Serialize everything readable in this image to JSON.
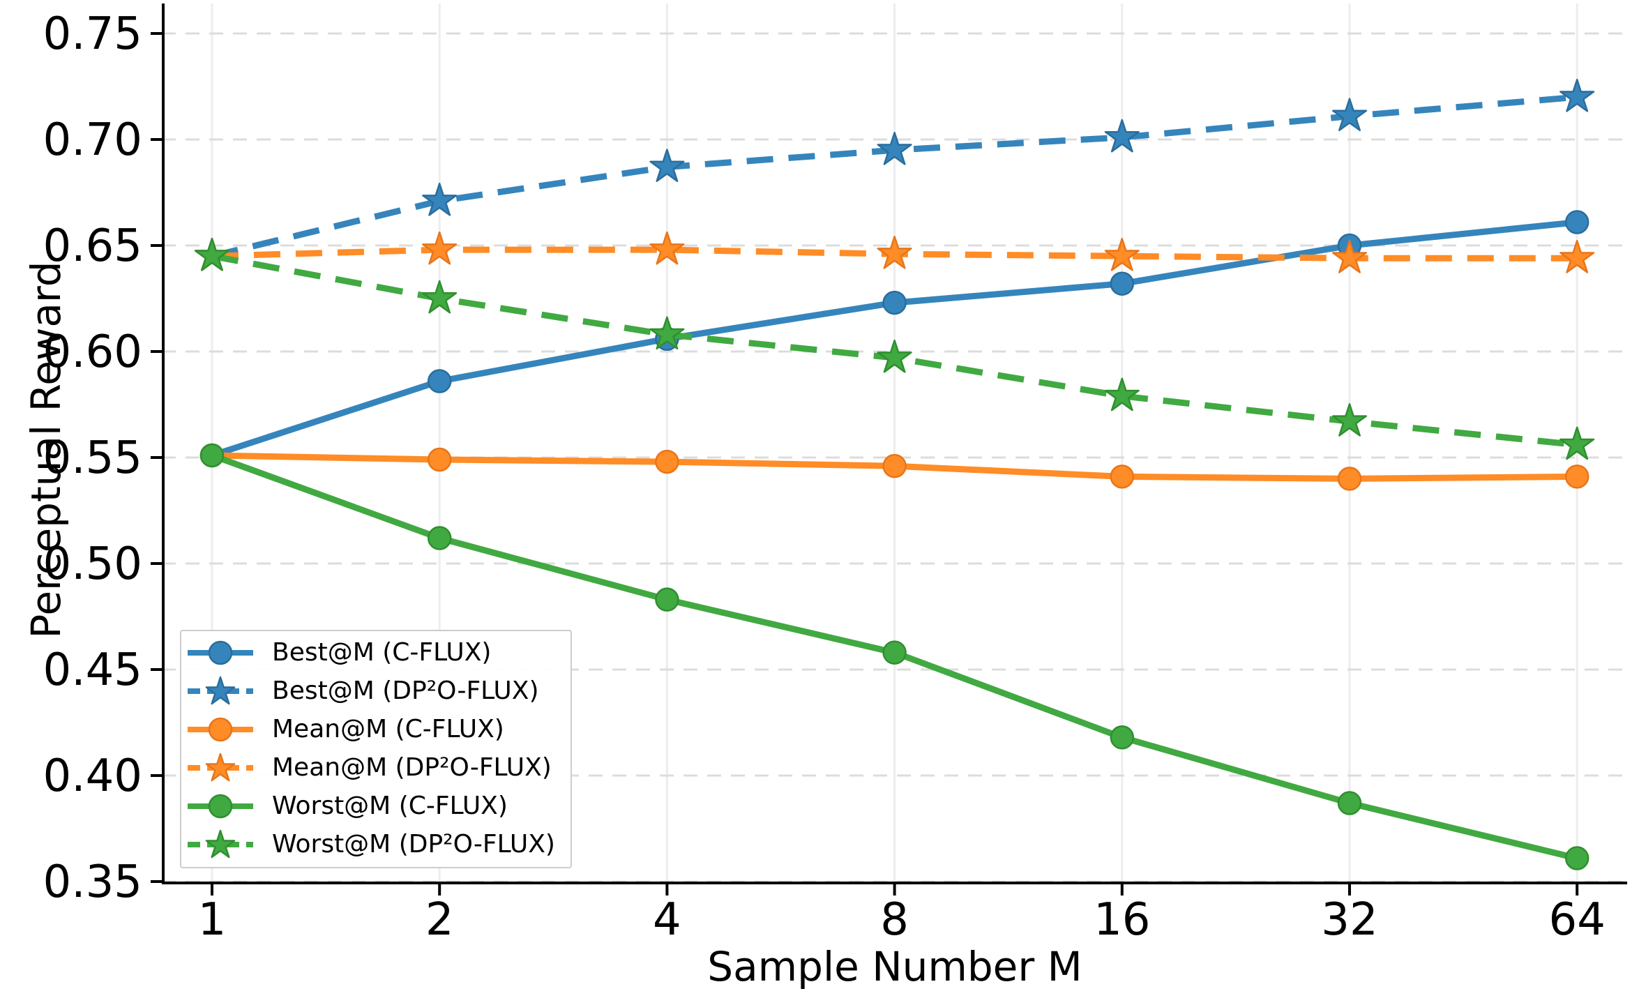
{
  "chart_data": {
    "type": "line",
    "title": "",
    "xlabel": "Sample Number M",
    "ylabel": "Perceptual Reward",
    "x_scale": "log2",
    "x": [
      1,
      2,
      4,
      8,
      16,
      32,
      64
    ],
    "x_tick_labels": [
      "1",
      "2",
      "4",
      "8",
      "16",
      "32",
      "64"
    ],
    "y_ticks": [
      0.35,
      0.4,
      0.45,
      0.5,
      0.55,
      0.6,
      0.65,
      0.7,
      0.75
    ],
    "y_tick_labels": [
      "0.35",
      "0.40",
      "0.45",
      "0.50",
      "0.55",
      "0.60",
      "0.65",
      "0.70",
      "0.75"
    ],
    "ylim": [
      0.349,
      0.764
    ],
    "grid": true,
    "legend_position": "lower left",
    "series": [
      {
        "name": "Best@M (C-FLUX)",
        "color": "#3585bc",
        "edge_color": "#2a6d9c",
        "style": "solid",
        "marker": "circle",
        "values": [
          0.551,
          0.586,
          0.606,
          0.623,
          0.632,
          0.65,
          0.661
        ]
      },
      {
        "name": "Best@M (DP²O-FLUX)",
        "color": "#3585bc",
        "edge_color": "#2a6d9c",
        "style": "dashed",
        "marker": "star",
        "values": [
          0.645,
          0.671,
          0.687,
          0.695,
          0.701,
          0.711,
          0.72
        ]
      },
      {
        "name": "Mean@M (C-FLUX)",
        "color": "#ff8c26",
        "edge_color": "#e8751a",
        "style": "solid",
        "marker": "circle",
        "values": [
          0.551,
          0.549,
          0.548,
          0.546,
          0.541,
          0.54,
          0.541
        ]
      },
      {
        "name": "Mean@M (DP²O-FLUX)",
        "color": "#ff8c26",
        "edge_color": "#e8751a",
        "style": "dashed",
        "marker": "star",
        "values": [
          0.645,
          0.648,
          0.648,
          0.646,
          0.645,
          0.644,
          0.644
        ]
      },
      {
        "name": "Worst@M (C-FLUX)",
        "color": "#41a941",
        "edge_color": "#2f8f2f",
        "style": "solid",
        "marker": "circle",
        "values": [
          0.551,
          0.512,
          0.483,
          0.458,
          0.418,
          0.387,
          0.361
        ]
      },
      {
        "name": "Worst@M (DP²O-FLUX)",
        "color": "#41a941",
        "edge_color": "#2f8f2f",
        "style": "dashed",
        "marker": "star",
        "values": [
          0.645,
          0.625,
          0.608,
          0.597,
          0.579,
          0.567,
          0.556
        ]
      }
    ],
    "style_colors": {
      "h_gridline": "#dcdcdc",
      "v_gridline": "#ededed",
      "spine": "#000000",
      "tick_label": "#000000"
    }
  }
}
